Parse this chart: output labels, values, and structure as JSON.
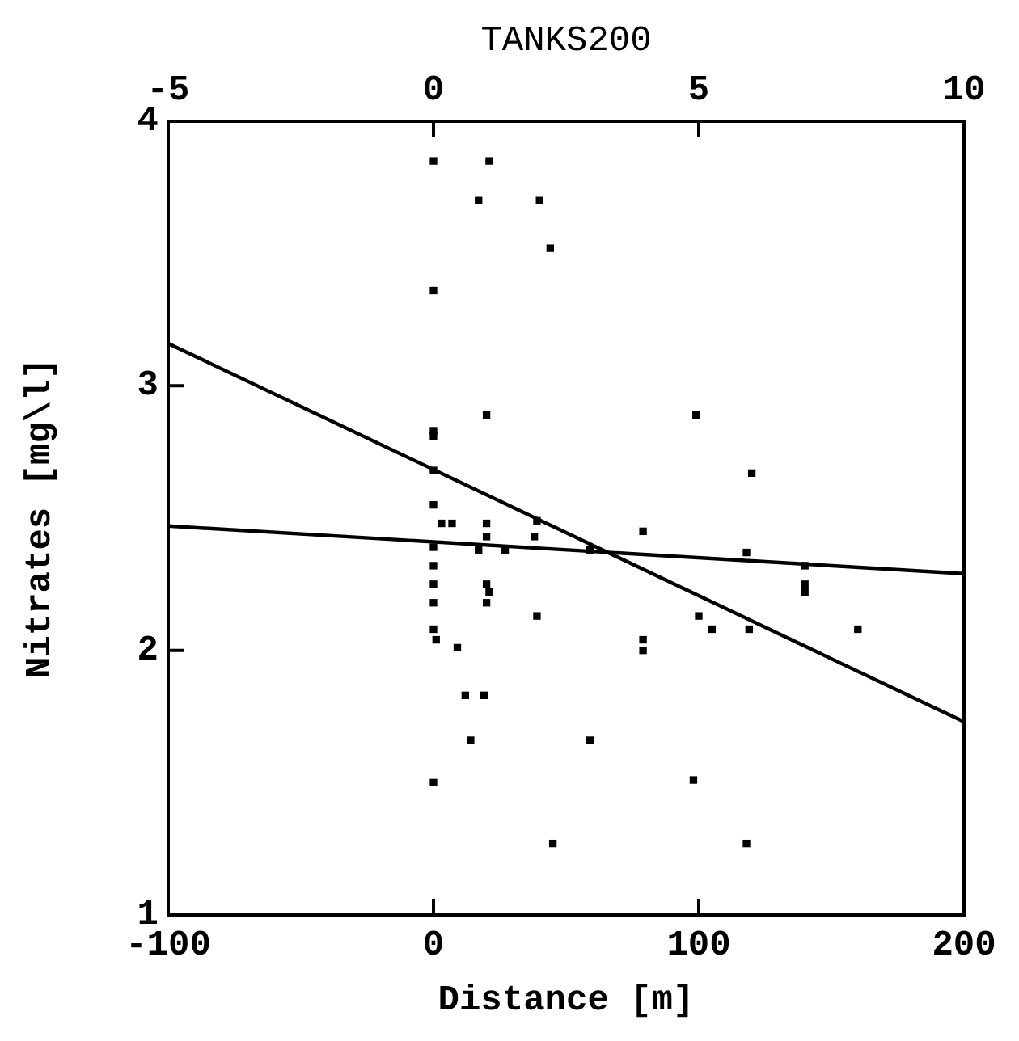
{
  "chart_data": {
    "type": "scatter",
    "x2label": "TANKS200",
    "xlabel": "Distance [m]",
    "ylabel": "Nitrates [mg\\l]",
    "xlim": [
      -100,
      200
    ],
    "xticks": [
      -100,
      0,
      100,
      200
    ],
    "x2lim": [
      -5,
      10
    ],
    "x2ticks": [
      -5,
      0,
      5,
      10
    ],
    "ylim": [
      1,
      4
    ],
    "yticks": [
      1,
      2,
      3,
      4
    ],
    "marker": "square",
    "series": [
      {
        "color": "#000000",
        "x": [
          0,
          21,
          17,
          40,
          44,
          0,
          20,
          0,
          0,
          0,
          0,
          3,
          7,
          20,
          20,
          39,
          38,
          0,
          17,
          27,
          59,
          0,
          0,
          0,
          0,
          1,
          20,
          21,
          20,
          39,
          9,
          12,
          19,
          14,
          59,
          0,
          45,
          79,
          79,
          79,
          99,
          120,
          118,
          140,
          140,
          140,
          100,
          105,
          119,
          160,
          98,
          118
        ],
        "values": [
          3.85,
          3.85,
          3.7,
          3.7,
          3.52,
          3.36,
          2.89,
          2.83,
          2.81,
          2.68,
          2.55,
          2.48,
          2.48,
          2.48,
          2.43,
          2.49,
          2.43,
          2.39,
          2.38,
          2.38,
          2.38,
          2.32,
          2.25,
          2.18,
          2.08,
          2.04,
          2.25,
          2.22,
          2.18,
          2.13,
          2.01,
          1.83,
          1.83,
          1.66,
          1.66,
          1.5,
          1.27,
          2.45,
          2.04,
          2.0,
          2.89,
          2.67,
          2.37,
          2.32,
          2.25,
          2.22,
          2.13,
          2.08,
          2.08,
          2.08,
          1.51,
          1.27
        ]
      },
      {
        "type": "line",
        "color": "#000000",
        "marker": "none",
        "x": [
          -100,
          200
        ],
        "values": [
          3.16,
          1.73
        ]
      },
      {
        "type": "line",
        "color": "#000000",
        "marker": "none",
        "x": [
          -100,
          200
        ],
        "values": [
          2.47,
          2.29
        ]
      }
    ]
  }
}
